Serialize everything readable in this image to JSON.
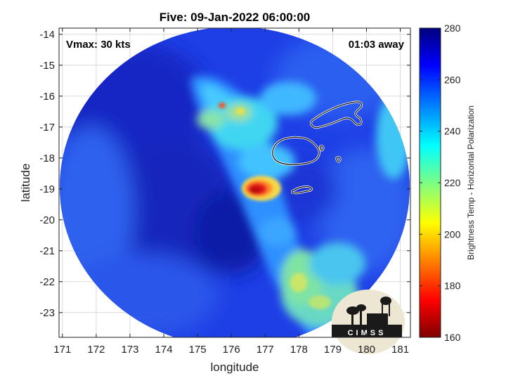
{
  "title": "Five: 09-Jan-2022 06:00:00",
  "vmax_label": "Vmax: 30 kts",
  "time_away_label": "01:03 away",
  "xlabel": "longitude",
  "ylabel": "latitude",
  "colorbar_label": "Brightness Temp - Horizontal Polarization",
  "logo_text": "CIMSS",
  "chart_data": {
    "type": "heatmap",
    "title": "Five: 09-Jan-2022 06:00:00",
    "xlabel": "longitude",
    "ylabel": "latitude",
    "xlim": [
      170.9,
      181.3
    ],
    "ylim": [
      -23.8,
      -13.8
    ],
    "xticks": [
      171,
      172,
      173,
      174,
      175,
      176,
      177,
      178,
      179,
      180,
      181
    ],
    "yticks": [
      -14,
      -15,
      -16,
      -17,
      -18,
      -19,
      -20,
      -21,
      -22,
      -23
    ],
    "grid": true,
    "colorbar": {
      "label": "Brightness Temp - Horizontal Polarization",
      "range": [
        160,
        280
      ],
      "ticks": [
        160,
        180,
        200,
        220,
        240,
        260,
        280
      ],
      "colormap": [
        "#7f0000",
        "#ff0000",
        "#ffff00",
        "#00ffff",
        "#0000ff",
        "#00007f"
      ]
    },
    "swath_center": [
      176.1,
      -18.9
    ],
    "features": [
      {
        "description": "cold core",
        "lon": 176.9,
        "lat": -18.95,
        "value": 178
      },
      {
        "description": "warm band",
        "lon": 176.0,
        "lat": -16.5,
        "value": 228
      },
      {
        "description": "cold spot",
        "lon": 175.8,
        "lat": -16.3,
        "value": 195
      },
      {
        "description": "southeast band",
        "lon": 179.0,
        "lat": -22.4,
        "value": 215
      }
    ]
  }
}
